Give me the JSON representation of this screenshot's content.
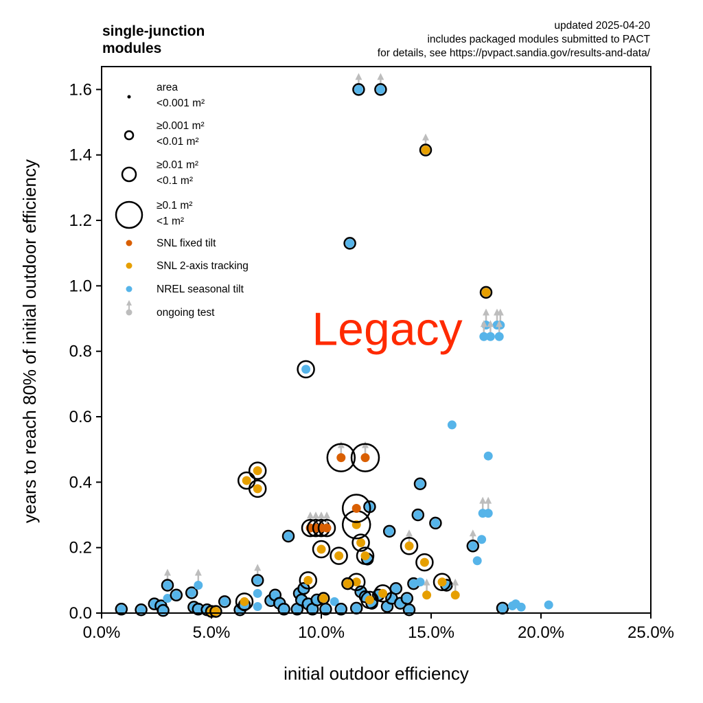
{
  "chart_data": {
    "type": "scatter",
    "title": "single-junction modules",
    "title_lines": [
      "single-junction",
      "modules"
    ],
    "subtitle_lines": [
      "updated 2025-04-20",
      "includes packaged modules submitted to PACT",
      "for details, see https://pvpact.sandia.gov/results-and-data/"
    ],
    "xlabel": "initial outdoor efficiency",
    "ylabel": "years to reach 80% of initial outdoor efficiency",
    "xlim": [
      0,
      25
    ],
    "ylim": [
      0,
      1.67
    ],
    "x_ticks": [
      {
        "value": 0,
        "label": "0.0%"
      },
      {
        "value": 5,
        "label": "5.0%"
      },
      {
        "value": 10,
        "label": "10.0%"
      },
      {
        "value": 15,
        "label": "15.0%"
      },
      {
        "value": 20,
        "label": "20.0%"
      },
      {
        "value": 25,
        "label": "25.0%"
      }
    ],
    "y_ticks": [
      {
        "value": 0.0,
        "label": "0.0"
      },
      {
        "value": 0.2,
        "label": "0.2"
      },
      {
        "value": 0.4,
        "label": "0.4"
      },
      {
        "value": 0.6,
        "label": "0.6"
      },
      {
        "value": 0.8,
        "label": "0.8"
      },
      {
        "value": 1.0,
        "label": "1.0"
      },
      {
        "value": 1.2,
        "label": "1.2"
      },
      {
        "value": 1.4,
        "label": "1.4"
      },
      {
        "value": 1.6,
        "label": "1.6"
      }
    ],
    "grid": false,
    "legend_position": "top-left",
    "annotation": {
      "text": "Legacy",
      "x": 13.0,
      "y": 0.87,
      "color": "#ff2a00"
    },
    "colors": {
      "SNL fixed tilt": "#d95f02",
      "SNL 2-axis tracking": "#e69f00",
      "NREL seasonal tilt": "#56b4e9",
      "ongoing": "#bdbdbd"
    },
    "size_classes": [
      {
        "key": 0,
        "label_lines": [
          "area",
          "<0.001 m²"
        ]
      },
      {
        "key": 1,
        "label_lines": [
          "≥0.001 m²",
          "<0.01 m²"
        ]
      },
      {
        "key": 2,
        "label_lines": [
          "≥0.01 m²",
          "<0.1 m²"
        ]
      },
      {
        "key": 3,
        "label_lines": [
          "≥0.1 m²",
          "<1 m²"
        ]
      }
    ],
    "legend_series": [
      {
        "name": "SNL fixed tilt"
      },
      {
        "name": "SNL 2-axis tracking"
      },
      {
        "name": "NREL seasonal tilt"
      },
      {
        "name": "ongoing test"
      }
    ],
    "series": [
      {
        "name": "NREL seasonal tilt",
        "points": [
          {
            "x": 11.7,
            "y": 1.6,
            "size": 1,
            "ongoing": true
          },
          {
            "x": 12.7,
            "y": 1.6,
            "size": 1,
            "ongoing": true
          },
          {
            "x": 11.3,
            "y": 1.13,
            "size": 1,
            "ongoing": false
          },
          {
            "x": 9.3,
            "y": 0.745,
            "size": 2,
            "ongoing": false
          },
          {
            "x": 17.5,
            "y": 0.88,
            "size": 0,
            "ongoing": true
          },
          {
            "x": 18.0,
            "y": 0.88,
            "size": 0,
            "ongoing": true
          },
          {
            "x": 18.15,
            "y": 0.88,
            "size": 0,
            "ongoing": true
          },
          {
            "x": 17.4,
            "y": 0.845,
            "size": 0,
            "ongoing": true
          },
          {
            "x": 17.7,
            "y": 0.845,
            "size": 0,
            "ongoing": true
          },
          {
            "x": 18.1,
            "y": 0.845,
            "size": 0,
            "ongoing": true
          },
          {
            "x": 15.95,
            "y": 0.575,
            "size": 0,
            "ongoing": false
          },
          {
            "x": 17.6,
            "y": 0.48,
            "size": 0,
            "ongoing": false
          },
          {
            "x": 14.5,
            "y": 0.395,
            "size": 1,
            "ongoing": false
          },
          {
            "x": 12.2,
            "y": 0.325,
            "size": 1,
            "ongoing": false
          },
          {
            "x": 14.4,
            "y": 0.3,
            "size": 1,
            "ongoing": false
          },
          {
            "x": 17.35,
            "y": 0.305,
            "size": 0,
            "ongoing": true
          },
          {
            "x": 17.6,
            "y": 0.305,
            "size": 0,
            "ongoing": true
          },
          {
            "x": 15.2,
            "y": 0.275,
            "size": 1,
            "ongoing": false
          },
          {
            "x": 13.1,
            "y": 0.25,
            "size": 1,
            "ongoing": false
          },
          {
            "x": 8.5,
            "y": 0.235,
            "size": 1,
            "ongoing": false
          },
          {
            "x": 17.3,
            "y": 0.225,
            "size": 0,
            "ongoing": false
          },
          {
            "x": 16.9,
            "y": 0.205,
            "size": 1,
            "ongoing": true
          },
          {
            "x": 17.1,
            "y": 0.16,
            "size": 0,
            "ongoing": false
          },
          {
            "x": 12.1,
            "y": 0.165,
            "size": 1,
            "ongoing": false
          },
          {
            "x": 14.2,
            "y": 0.09,
            "size": 1,
            "ongoing": false
          },
          {
            "x": 14.5,
            "y": 0.095,
            "size": 0,
            "ongoing": false
          },
          {
            "x": 15.7,
            "y": 0.085,
            "size": 1,
            "ongoing": false
          },
          {
            "x": 18.25,
            "y": 0.015,
            "size": 1,
            "ongoing": false
          },
          {
            "x": 18.7,
            "y": 0.022,
            "size": 0,
            "ongoing": false
          },
          {
            "x": 18.85,
            "y": 0.028,
            "size": 0,
            "ongoing": false
          },
          {
            "x": 19.1,
            "y": 0.018,
            "size": 0,
            "ongoing": false
          },
          {
            "x": 20.35,
            "y": 0.025,
            "size": 0,
            "ongoing": false
          },
          {
            "x": 0.9,
            "y": 0.012,
            "size": 1,
            "ongoing": false
          },
          {
            "x": 1.8,
            "y": 0.01,
            "size": 1,
            "ongoing": false
          },
          {
            "x": 2.4,
            "y": 0.028,
            "size": 1,
            "ongoing": false
          },
          {
            "x": 2.7,
            "y": 0.022,
            "size": 1,
            "ongoing": false
          },
          {
            "x": 2.8,
            "y": 0.008,
            "size": 1,
            "ongoing": false
          },
          {
            "x": 3.0,
            "y": 0.085,
            "size": 1,
            "ongoing": true
          },
          {
            "x": 3.0,
            "y": 0.045,
            "size": 0,
            "ongoing": false
          },
          {
            "x": 3.4,
            "y": 0.055,
            "size": 1,
            "ongoing": false
          },
          {
            "x": 4.1,
            "y": 0.062,
            "size": 1,
            "ongoing": false
          },
          {
            "x": 4.4,
            "y": 0.085,
            "size": 0,
            "ongoing": true
          },
          {
            "x": 4.2,
            "y": 0.018,
            "size": 1,
            "ongoing": false
          },
          {
            "x": 4.4,
            "y": 0.012,
            "size": 1,
            "ongoing": false
          },
          {
            "x": 4.8,
            "y": 0.01,
            "size": 1,
            "ongoing": false
          },
          {
            "x": 5.6,
            "y": 0.035,
            "size": 1,
            "ongoing": false
          },
          {
            "x": 6.3,
            "y": 0.01,
            "size": 1,
            "ongoing": false
          },
          {
            "x": 6.5,
            "y": 0.025,
            "size": 1,
            "ongoing": false
          },
          {
            "x": 7.1,
            "y": 0.1,
            "size": 1,
            "ongoing": true
          },
          {
            "x": 7.1,
            "y": 0.06,
            "size": 0,
            "ongoing": false
          },
          {
            "x": 7.1,
            "y": 0.02,
            "size": 0,
            "ongoing": false
          },
          {
            "x": 7.7,
            "y": 0.038,
            "size": 1,
            "ongoing": false
          },
          {
            "x": 7.9,
            "y": 0.055,
            "size": 1,
            "ongoing": false
          },
          {
            "x": 8.1,
            "y": 0.03,
            "size": 1,
            "ongoing": false
          },
          {
            "x": 8.3,
            "y": 0.012,
            "size": 1,
            "ongoing": false
          },
          {
            "x": 8.9,
            "y": 0.012,
            "size": 1,
            "ongoing": false
          },
          {
            "x": 9.0,
            "y": 0.06,
            "size": 1,
            "ongoing": false
          },
          {
            "x": 9.1,
            "y": 0.04,
            "size": 1,
            "ongoing": false
          },
          {
            "x": 9.2,
            "y": 0.075,
            "size": 1,
            "ongoing": false
          },
          {
            "x": 9.4,
            "y": 0.028,
            "size": 1,
            "ongoing": false
          },
          {
            "x": 9.6,
            "y": 0.012,
            "size": 1,
            "ongoing": false
          },
          {
            "x": 9.8,
            "y": 0.04,
            "size": 1,
            "ongoing": false
          },
          {
            "x": 10.2,
            "y": 0.012,
            "size": 1,
            "ongoing": false
          },
          {
            "x": 10.6,
            "y": 0.035,
            "size": 0,
            "ongoing": false
          },
          {
            "x": 10.9,
            "y": 0.012,
            "size": 1,
            "ongoing": false
          },
          {
            "x": 11.6,
            "y": 0.015,
            "size": 1,
            "ongoing": false
          },
          {
            "x": 11.8,
            "y": 0.065,
            "size": 1,
            "ongoing": false
          },
          {
            "x": 12.0,
            "y": 0.05,
            "size": 1,
            "ongoing": false
          },
          {
            "x": 12.3,
            "y": 0.03,
            "size": 1,
            "ongoing": false
          },
          {
            "x": 12.6,
            "y": 0.055,
            "size": 1,
            "ongoing": false
          },
          {
            "x": 13.0,
            "y": 0.02,
            "size": 1,
            "ongoing": false
          },
          {
            "x": 13.2,
            "y": 0.045,
            "size": 1,
            "ongoing": false
          },
          {
            "x": 13.4,
            "y": 0.075,
            "size": 1,
            "ongoing": false
          },
          {
            "x": 13.6,
            "y": 0.03,
            "size": 1,
            "ongoing": false
          },
          {
            "x": 13.9,
            "y": 0.045,
            "size": 1,
            "ongoing": false
          },
          {
            "x": 14.0,
            "y": 0.01,
            "size": 1,
            "ongoing": false
          }
        ]
      },
      {
        "name": "SNL 2-axis tracking",
        "points": [
          {
            "x": 14.75,
            "y": 1.415,
            "size": 1,
            "ongoing": true
          },
          {
            "x": 17.5,
            "y": 0.98,
            "size": 1,
            "ongoing": false
          },
          {
            "x": 6.6,
            "y": 0.405,
            "size": 2,
            "ongoing": false
          },
          {
            "x": 7.1,
            "y": 0.435,
            "size": 2,
            "ongoing": false
          },
          {
            "x": 7.1,
            "y": 0.38,
            "size": 2,
            "ongoing": false
          },
          {
            "x": 11.8,
            "y": 0.215,
            "size": 2,
            "ongoing": false
          },
          {
            "x": 11.6,
            "y": 0.27,
            "size": 3,
            "ongoing": false
          },
          {
            "x": 10.0,
            "y": 0.195,
            "size": 2,
            "ongoing": false
          },
          {
            "x": 10.8,
            "y": 0.175,
            "size": 2,
            "ongoing": false
          },
          {
            "x": 12.0,
            "y": 0.175,
            "size": 2,
            "ongoing": false
          },
          {
            "x": 14.0,
            "y": 0.205,
            "size": 2,
            "ongoing": true
          },
          {
            "x": 14.7,
            "y": 0.155,
            "size": 2,
            "ongoing": false
          },
          {
            "x": 15.5,
            "y": 0.095,
            "size": 2,
            "ongoing": false
          },
          {
            "x": 14.8,
            "y": 0.055,
            "size": 0,
            "ongoing": true
          },
          {
            "x": 16.1,
            "y": 0.055,
            "size": 0,
            "ongoing": true
          },
          {
            "x": 9.4,
            "y": 0.1,
            "size": 2,
            "ongoing": false
          },
          {
            "x": 11.6,
            "y": 0.095,
            "size": 2,
            "ongoing": false
          },
          {
            "x": 11.2,
            "y": 0.09,
            "size": 1,
            "ongoing": false
          },
          {
            "x": 6.5,
            "y": 0.035,
            "size": 2,
            "ongoing": false
          },
          {
            "x": 10.1,
            "y": 0.045,
            "size": 1,
            "ongoing": false
          },
          {
            "x": 12.2,
            "y": 0.04,
            "size": 2,
            "ongoing": false
          },
          {
            "x": 12.8,
            "y": 0.06,
            "size": 2,
            "ongoing": false
          },
          {
            "x": 5.0,
            "y": 0.005,
            "size": 1,
            "ongoing": false
          },
          {
            "x": 5.2,
            "y": 0.005,
            "size": 1,
            "ongoing": false
          }
        ]
      },
      {
        "name": "SNL fixed tilt",
        "points": [
          {
            "x": 10.9,
            "y": 0.475,
            "size": 3,
            "ongoing": true
          },
          {
            "x": 12.0,
            "y": 0.475,
            "size": 3,
            "ongoing": true
          },
          {
            "x": 11.6,
            "y": 0.32,
            "size": 3,
            "ongoing": false
          },
          {
            "x": 9.5,
            "y": 0.26,
            "size": 2,
            "ongoing": true
          },
          {
            "x": 9.75,
            "y": 0.26,
            "size": 2,
            "ongoing": true
          },
          {
            "x": 10.0,
            "y": 0.26,
            "size": 2,
            "ongoing": true
          },
          {
            "x": 10.25,
            "y": 0.26,
            "size": 2,
            "ongoing": true
          }
        ]
      }
    ]
  }
}
